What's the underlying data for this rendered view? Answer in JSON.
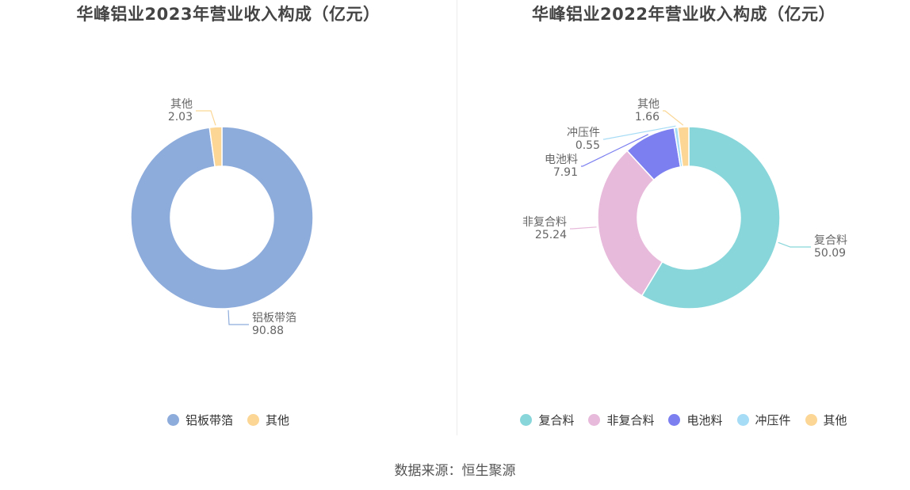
{
  "source_label": "数据来源：恒生聚源",
  "chart_data": [
    {
      "type": "pie",
      "title": "华峰铝业2023年营业收入构成（亿元）",
      "categories": [
        "铝板带箔",
        "其他"
      ],
      "values": [
        90.88,
        2.03
      ],
      "value_labels": [
        "90.88",
        "2.03"
      ],
      "colors": [
        "#8eacdb",
        "#fbd695"
      ],
      "legend_position": "bottom"
    },
    {
      "type": "pie",
      "title": "华峰铝业2022年营业收入构成（亿元）",
      "categories": [
        "复合料",
        "非复合料",
        "电池料",
        "冲压件",
        "其他"
      ],
      "values": [
        50.09,
        25.24,
        7.91,
        0.55,
        1.66
      ],
      "value_labels": [
        "50.09",
        "25.24",
        "7.91",
        "0.55",
        "1.66"
      ],
      "colors": [
        "#88d6da",
        "#e7b9da",
        "#7b7ff0",
        "#a6dcf5",
        "#fbd695"
      ],
      "legend_position": "bottom"
    }
  ]
}
